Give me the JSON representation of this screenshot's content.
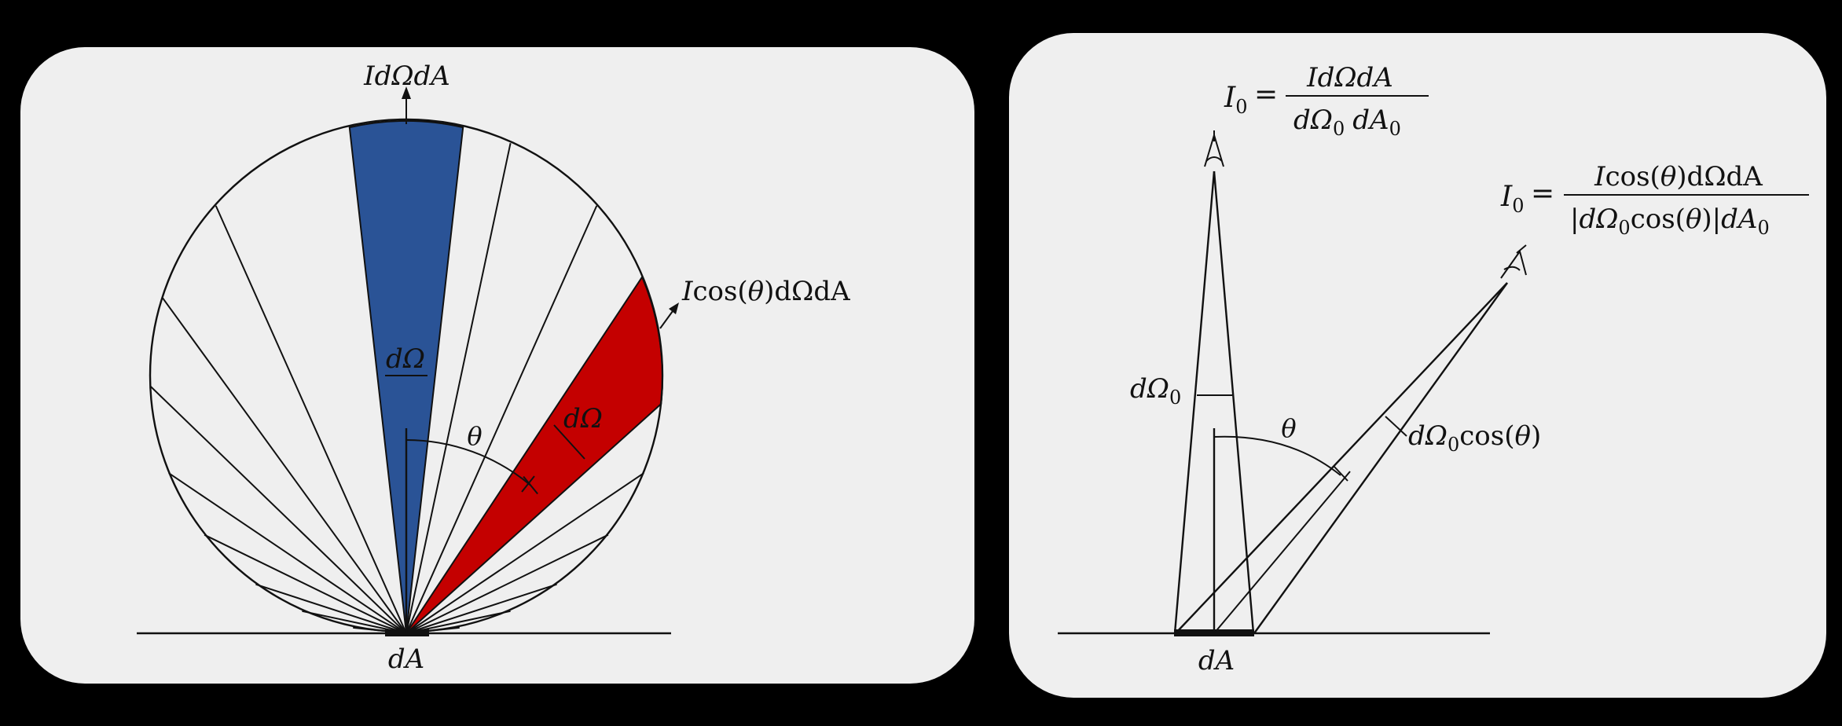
{
  "left_panel": {
    "top_label": "IdΩdA",
    "tilted_label_pre": "I",
    "tilted_label_func": "cos(",
    "tilted_label_theta": "θ",
    "tilted_label_post": ")dΩdA",
    "blue_sector_label": "dΩ",
    "red_sector_label": "dΩ",
    "angle_label": "θ",
    "base_label": "dA",
    "colors": {
      "blue": "#2a5396",
      "red": "#c40000",
      "panel": "#efefef"
    }
  },
  "right_panel": {
    "eq1_lhs": "I",
    "eq1_lhs_sub": "0",
    "eq1_eq": "=",
    "eq1_num": "IdΩdA",
    "eq1_den_a": "dΩ",
    "eq1_den_a_sub": "0",
    "eq1_den_b": "dA",
    "eq1_den_b_sub": "0",
    "eq2_lhs": "I",
    "eq2_lhs_sub": "0",
    "eq2_eq": "=",
    "eq2_num_i": "I",
    "eq2_num_cos": "cos(",
    "eq2_num_theta": "θ",
    "eq2_num_rest": ")dΩdA",
    "eq2_den_a": "|dΩ",
    "eq2_den_a_sub": "0",
    "eq2_den_cos": "cos(",
    "eq2_den_theta": "θ",
    "eq2_den_close": ")|",
    "eq2_den_b": "dA",
    "eq2_den_b_sub": "0",
    "vertical_label": "dΩ",
    "vertical_label_sub": "0",
    "tilted_label": "dΩ",
    "tilted_label_sub": "0",
    "tilted_label_cos": "cos(",
    "tilted_label_theta": "θ",
    "tilted_label_close": ")",
    "angle_label": "θ",
    "base_label": "dA"
  }
}
